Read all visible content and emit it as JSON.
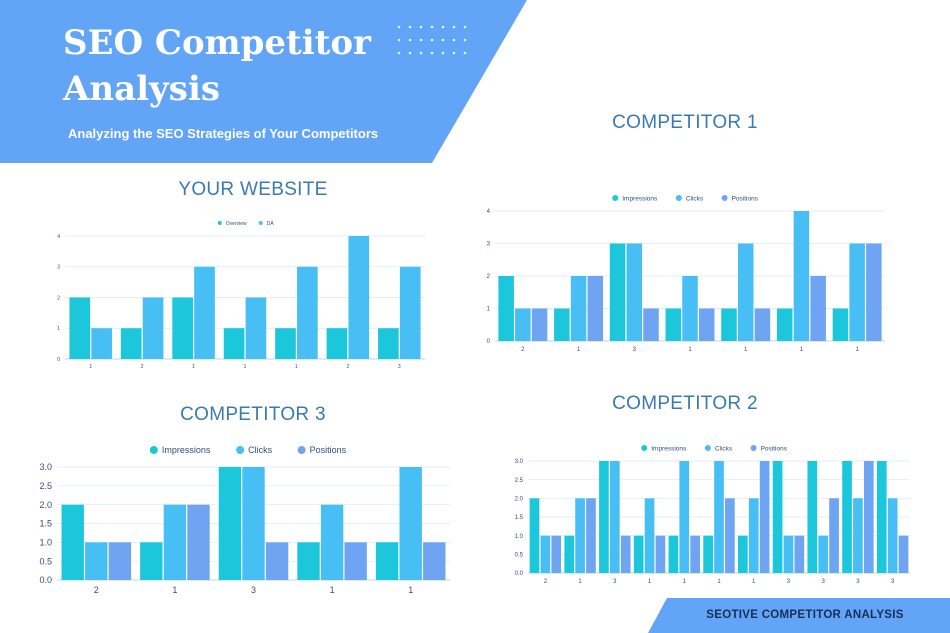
{
  "header": {
    "title_line1": "SEO Competitor",
    "title_line2": "Analysis",
    "subtitle": "Analyzing the SEO Strategies of Your Competitors"
  },
  "colors": {
    "banner": "#62a4f5",
    "impressions": "#1cc7dc",
    "clicks": "#47bff5",
    "positions": "#6ea4f2",
    "title_text": "#3a7ab0"
  },
  "footer": {
    "label": "SEOTIVE COMPETITOR ANALYSIS"
  },
  "charts": {
    "your_website": {
      "title": "YOUR WEBSITE",
      "chart_data": {
        "type": "bar",
        "categories": [
          "1",
          "2",
          "1",
          "1",
          "1",
          "2",
          "3"
        ],
        "series": [
          {
            "name": "Overview",
            "values": [
              2,
              1,
              2,
              1,
              1,
              1,
              1
            ]
          },
          {
            "name": "DA",
            "values": [
              1,
              2,
              3,
              2,
              3,
              4,
              3
            ]
          }
        ],
        "ylim": [
          0,
          4
        ],
        "yticks": [
          "0",
          "1",
          "2",
          "3",
          "4"
        ],
        "grid": true,
        "legend": "top-center"
      }
    },
    "competitor_1": {
      "title": "COMPETITOR 1",
      "chart_data": {
        "type": "bar",
        "categories": [
          "2",
          "1",
          "3",
          "1",
          "1",
          "1",
          "1"
        ],
        "series": [
          {
            "name": "Impressions",
            "values": [
              2,
              1,
              3,
              1,
              1,
              1,
              1
            ]
          },
          {
            "name": "Clicks",
            "values": [
              1,
              2,
              3,
              2,
              3,
              4,
              3
            ]
          },
          {
            "name": "Positions",
            "values": [
              1,
              2,
              1,
              1,
              1,
              2,
              3
            ]
          }
        ],
        "ylim": [
          0,
          4
        ],
        "yticks": [
          "0",
          "1",
          "2",
          "3",
          "4"
        ],
        "grid": true,
        "legend": "top-center"
      }
    },
    "competitor_3": {
      "title": "COMPETITOR 3",
      "chart_data": {
        "type": "bar",
        "categories": [
          "2",
          "1",
          "3",
          "1",
          "1"
        ],
        "series": [
          {
            "name": "Impressions",
            "values": [
              2,
              1,
              3,
              1,
              1
            ]
          },
          {
            "name": "Clicks",
            "values": [
              1,
              2,
              3,
              2,
              3
            ]
          },
          {
            "name": "Positions",
            "values": [
              1,
              2,
              1,
              1,
              1
            ]
          }
        ],
        "ylim": [
          0,
          3
        ],
        "yticks": [
          "0.0",
          "0.5",
          "1.0",
          "1.5",
          "2.0",
          "2.5",
          "3.0"
        ],
        "grid": true,
        "legend": "top-center"
      }
    },
    "competitor_2": {
      "title": "COMPETITOR 2",
      "chart_data": {
        "type": "bar",
        "categories": [
          "2",
          "1",
          "3",
          "1",
          "1",
          "1",
          "1",
          "3",
          "3",
          "3",
          "3"
        ],
        "series": [
          {
            "name": "Impressions",
            "values": [
              2,
              1,
              3,
              1,
              1,
              1,
              1,
              3,
              3,
              3,
              3
            ]
          },
          {
            "name": "Clicks",
            "values": [
              1,
              2,
              3,
              2,
              3,
              3,
              2,
              1,
              1,
              2,
              2
            ]
          },
          {
            "name": "Positions",
            "values": [
              1,
              2,
              1,
              1,
              1,
              2,
              3,
              1,
              2,
              3,
              1
            ]
          }
        ],
        "ylim": [
          0,
          3
        ],
        "yticks": [
          "0.0",
          "0.5",
          "1.0",
          "1.5",
          "2.0",
          "2.5",
          "3.0"
        ],
        "grid": true,
        "legend": "top-center"
      }
    }
  }
}
